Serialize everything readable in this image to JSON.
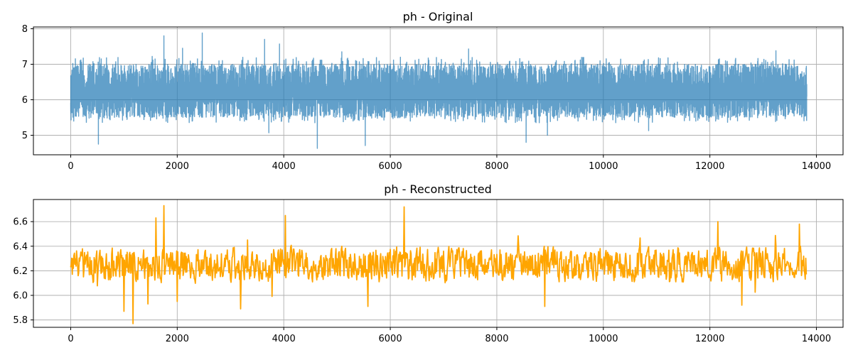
{
  "chart_data": [
    {
      "type": "line",
      "title": "ph - Original",
      "xlabel": "",
      "ylabel": "",
      "xlim": [
        -700,
        14500
      ],
      "ylim": [
        4.45,
        8.05
      ],
      "xticks": [
        0,
        2000,
        4000,
        6000,
        8000,
        10000,
        12000,
        14000
      ],
      "xtick_labels": [
        "0",
        "2000",
        "4000",
        "6000",
        "8000",
        "10000",
        "12000",
        "14000"
      ],
      "yticks": [
        5,
        6,
        7,
        8
      ],
      "ytick_labels": [
        "5",
        "6",
        "7",
        "8"
      ],
      "grid": true,
      "series": [
        {
          "color": "#1f77b4",
          "opacity": 0.7,
          "n_points": 13820,
          "typical_low": 5.5,
          "typical_high": 7.0,
          "mean": 6.2,
          "spikes": [
            {
              "x": 1750,
              "y": 7.8
            },
            {
              "x": 2100,
              "y": 7.45
            },
            {
              "x": 2470,
              "y": 7.88
            },
            {
              "x": 3640,
              "y": 7.7
            },
            {
              "x": 3920,
              "y": 7.57
            },
            {
              "x": 5090,
              "y": 7.35
            },
            {
              "x": 7470,
              "y": 7.43
            },
            {
              "x": 13240,
              "y": 7.38
            },
            {
              "x": 1530,
              "y": 7.22
            },
            {
              "x": 520,
              "y": 4.75
            },
            {
              "x": 3720,
              "y": 5.07
            },
            {
              "x": 4630,
              "y": 4.63
            },
            {
              "x": 5530,
              "y": 4.71
            },
            {
              "x": 8550,
              "y": 4.8
            },
            {
              "x": 8950,
              "y": 5.0
            },
            {
              "x": 10850,
              "y": 5.13
            }
          ]
        }
      ]
    },
    {
      "type": "line",
      "title": "ph - Reconstructed",
      "xlabel": "",
      "ylabel": "",
      "xlim": [
        -700,
        14500
      ],
      "ylim": [
        5.74,
        6.78
      ],
      "xticks": [
        0,
        2000,
        4000,
        6000,
        8000,
        10000,
        12000,
        14000
      ],
      "xtick_labels": [
        "0",
        "2000",
        "4000",
        "6000",
        "8000",
        "10000",
        "12000",
        "14000"
      ],
      "yticks": [
        5.8,
        6.0,
        6.2,
        6.4,
        6.6
      ],
      "ytick_labels": [
        "5.8",
        "6.0",
        "6.2",
        "6.4",
        "6.6"
      ],
      "grid": true,
      "series": [
        {
          "color": "#ffa500",
          "n_points": 1382,
          "x_max": 13820,
          "mean": 6.25,
          "typical_low": 6.08,
          "typical_high": 6.42,
          "spikes": [
            {
              "x": 1000,
              "y": 5.87
            },
            {
              "x": 1170,
              "y": 5.77
            },
            {
              "x": 1450,
              "y": 5.93
            },
            {
              "x": 1750,
              "y": 6.73
            },
            {
              "x": 1600,
              "y": 6.63
            },
            {
              "x": 3190,
              "y": 5.89
            },
            {
              "x": 4030,
              "y": 6.65
            },
            {
              "x": 5580,
              "y": 5.91
            },
            {
              "x": 6260,
              "y": 6.72
            },
            {
              "x": 2000,
              "y": 5.95
            },
            {
              "x": 8900,
              "y": 5.91
            },
            {
              "x": 12150,
              "y": 6.6
            },
            {
              "x": 12600,
              "y": 5.92
            },
            {
              "x": 13680,
              "y": 6.58
            }
          ]
        }
      ]
    }
  ]
}
